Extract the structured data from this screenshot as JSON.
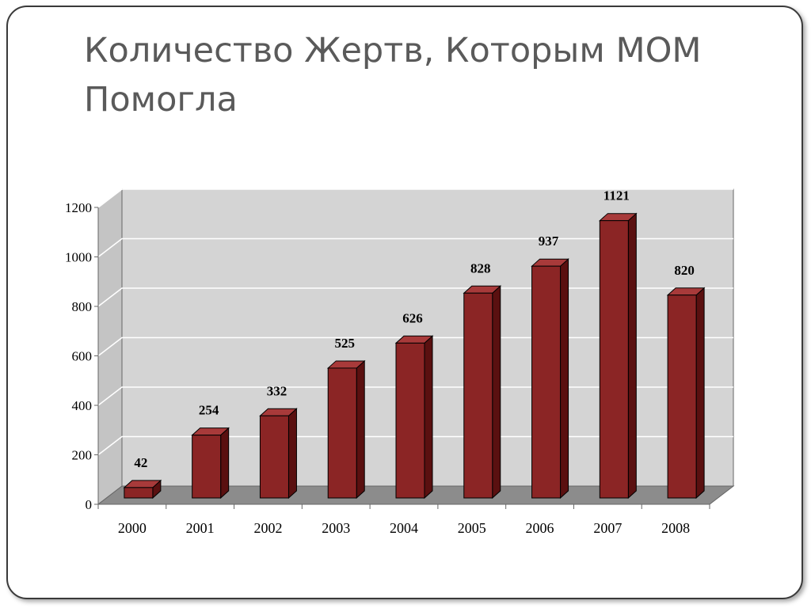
{
  "slide": {
    "title": "Количество Жертв, Которым МОМ Помогла"
  },
  "chart_data": {
    "type": "bar",
    "title": "Количество Жертв, Которым МОМ Помогла",
    "xlabel": "",
    "ylabel": "",
    "categories": [
      "2000",
      "2001",
      "2002",
      "2003",
      "2004",
      "2005",
      "2006",
      "2007",
      "2008"
    ],
    "values": [
      42,
      254,
      332,
      525,
      626,
      828,
      937,
      1121,
      820
    ],
    "ylim": [
      0,
      1200
    ],
    "yticks": [
      "0",
      "200",
      "400",
      "600",
      "800",
      "1000",
      "1200"
    ],
    "grid": true,
    "legend": "none",
    "colors": {
      "bar_front": "#8b2525",
      "bar_top": "#a83a3a",
      "bar_side": "#5a1010",
      "wall": "#d4d4d4",
      "floor": "#8c8c8c",
      "gridline": "#ffffff"
    }
  }
}
